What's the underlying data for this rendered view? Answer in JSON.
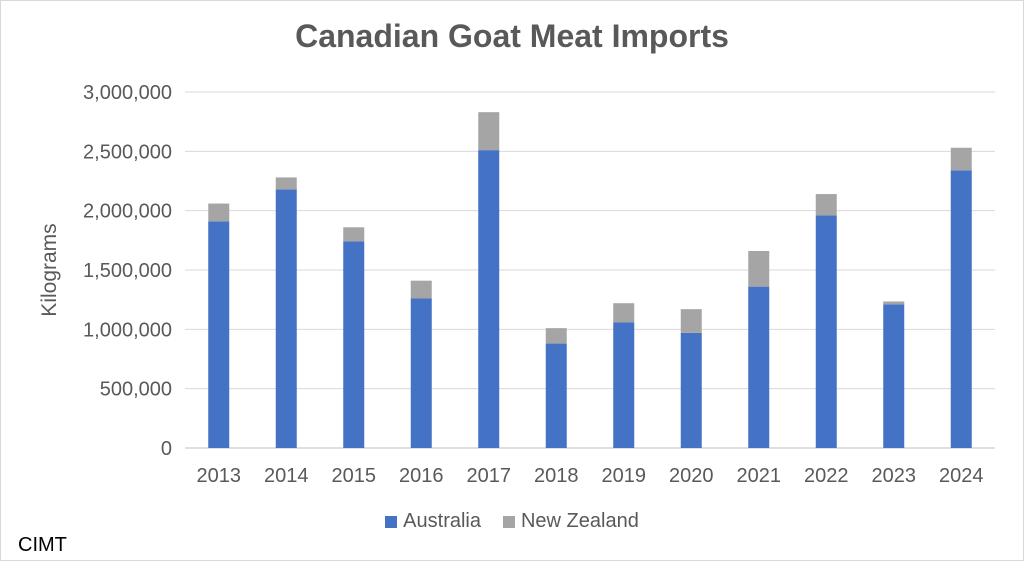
{
  "chart_data": {
    "type": "bar",
    "stacked": true,
    "title": "Canadian Goat Meat Imports",
    "ylabel": "Kilograms",
    "xlabel": "",
    "categories": [
      "2013",
      "2014",
      "2015",
      "2016",
      "2017",
      "2018",
      "2019",
      "2020",
      "2021",
      "2022",
      "2023",
      "2024"
    ],
    "series": [
      {
        "name": "Australia",
        "color": "#4472c4",
        "values": [
          1910000,
          2180000,
          1740000,
          1260000,
          2510000,
          880000,
          1060000,
          970000,
          1360000,
          1960000,
          1210000,
          2340000
        ]
      },
      {
        "name": "New Zealand",
        "color": "#a5a5a5",
        "values": [
          150000,
          100000,
          120000,
          150000,
          320000,
          130000,
          160000,
          200000,
          300000,
          180000,
          25000,
          190000
        ]
      }
    ],
    "ylim": [
      0,
      3000000
    ],
    "yticks": [
      "0",
      "500,000",
      "1,000,000",
      "1,500,000",
      "2,000,000",
      "2,500,000",
      "3,000,000"
    ],
    "grid": true,
    "legend_position": "bottom",
    "source": "CIMT"
  }
}
